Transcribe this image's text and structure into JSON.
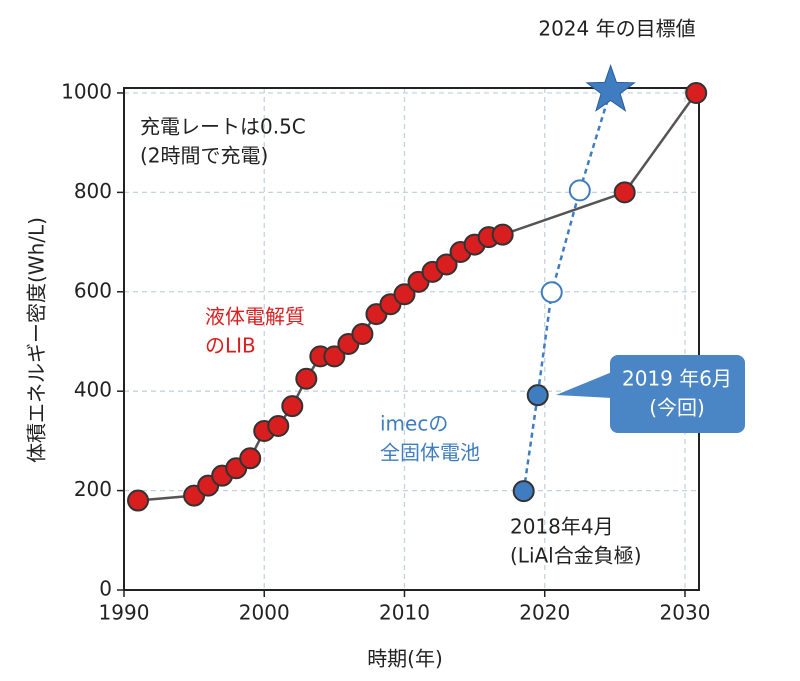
{
  "chart_data": {
    "type": "line",
    "xlabel": "時期(年)",
    "ylabel": "体積エネルギー密度(Wh/L)",
    "xlim": [
      1990,
      2031
    ],
    "ylim": [
      0,
      1010
    ],
    "xticks": [
      1990,
      2000,
      2010,
      2020,
      2030
    ],
    "yticks": [
      0,
      200,
      400,
      600,
      800,
      1000
    ],
    "grid": true,
    "series": [
      {
        "color": "#d81e1e",
        "line_color": "#555555",
        "line_style": "solid",
        "x": [
          1991,
          1995,
          1996,
          1997,
          1998,
          1999,
          2000,
          2001,
          2002,
          2003,
          2004,
          2005,
          2006,
          2007,
          2008,
          2009,
          2010,
          2011,
          2012,
          2013,
          2014,
          2015,
          2016,
          2017,
          2025.7,
          2030.8
        ],
        "values": [
          180,
          190,
          210,
          230,
          245,
          265,
          320,
          330,
          370,
          425,
          470,
          470,
          495,
          515,
          555,
          575,
          595,
          620,
          640,
          655,
          680,
          695,
          710,
          715,
          800,
          1000
        ],
        "markers": [
          "filled",
          "filled",
          "filled",
          "filled",
          "filled",
          "filled",
          "filled",
          "filled",
          "filled",
          "filled",
          "filled",
          "filled",
          "filled",
          "filled",
          "filled",
          "filled",
          "filled",
          "filled",
          "filled",
          "filled",
          "filled",
          "filled",
          "filled",
          "filled",
          "filled",
          "filled"
        ]
      },
      {
        "color": "#3f7cc0",
        "line_color": "#3f7cc0",
        "line_style": "dashed",
        "x": [
          2018.5,
          2019.5,
          2020.5,
          2022.5,
          2024.7
        ],
        "values": [
          199,
          392,
          599,
          804,
          1005
        ],
        "markers": [
          "filled",
          "filled",
          "open",
          "open",
          "star"
        ]
      }
    ],
    "annotations": [
      {
        "lines": [
          "2024 年の目標値"
        ],
        "color": "#222222"
      },
      {
        "lines": [
          "充電レートは0.5C",
          "(2時間で充電)"
        ],
        "color": "#222222"
      },
      {
        "lines": [
          "液体電解質",
          "のLIB"
        ],
        "color": "#d81e1e"
      },
      {
        "lines": [
          "imecの",
          "全固体電池"
        ],
        "color": "#3f7cc0"
      },
      {
        "lines": [
          "2018年4月",
          "(LiAl合金負極)"
        ],
        "color": "#222222"
      },
      {
        "lines": [
          "2019 年6月",
          "(今回)"
        ],
        "color": "#ffffff",
        "box": "#4a86c5"
      }
    ]
  }
}
